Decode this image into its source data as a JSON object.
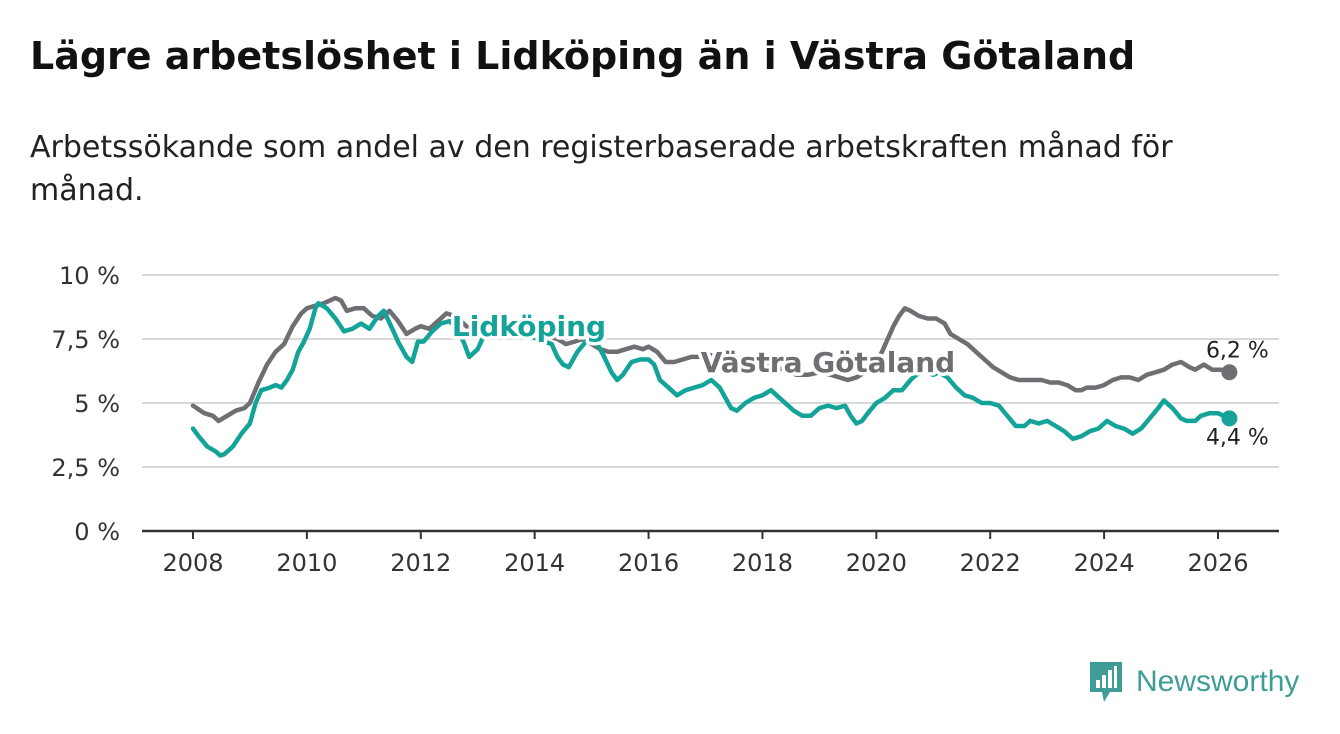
{
  "title": "Lägre arbetslöshet i Lidköping än i Västra Götaland",
  "subtitle": "Arbetssökande som andel av den registerbaserade arbetskraften månad för månad.",
  "brand": {
    "name": "Newsworthy",
    "icon": "newsworthy-logo-icon"
  },
  "colors": {
    "vg": "#6f6e73",
    "lid": "#14a398",
    "grid": "#d9d9d9",
    "axis": "#333333",
    "brand": "#3e9d97"
  },
  "chart_data": {
    "type": "line",
    "title": "Lägre arbetslöshet i Lidköping än i Västra Götaland",
    "xlabel": "",
    "ylabel": "",
    "xlim": [
      2007.2,
      2027.0
    ],
    "ylim": [
      0,
      10
    ],
    "grid": true,
    "x_ticks": [
      2008,
      2010,
      2012,
      2014,
      2016,
      2018,
      2020,
      2022,
      2024,
      2026
    ],
    "x_tick_labels": [
      "2008",
      "2010",
      "2012",
      "2014",
      "2016",
      "2018",
      "2020",
      "2022",
      "2024",
      "2026"
    ],
    "y_ticks": [
      0,
      2.5,
      5,
      7.5,
      10
    ],
    "y_tick_labels": [
      "0 %",
      "2,5 %",
      "5 %",
      "7,5 %",
      "10 %"
    ],
    "series": [
      {
        "name": "Västra Götaland",
        "color": "#6f6e73",
        "end_label": "6,2 %",
        "points": [
          [
            2008.0,
            4.9
          ],
          [
            2008.2,
            4.6
          ],
          [
            2008.35,
            4.5
          ],
          [
            2008.45,
            4.3
          ],
          [
            2008.6,
            4.5
          ],
          [
            2008.75,
            4.7
          ],
          [
            2008.9,
            4.8
          ],
          [
            2009.0,
            5.0
          ],
          [
            2009.15,
            5.8
          ],
          [
            2009.3,
            6.5
          ],
          [
            2009.45,
            7.0
          ],
          [
            2009.6,
            7.3
          ],
          [
            2009.75,
            8.0
          ],
          [
            2009.9,
            8.5
          ],
          [
            2010.0,
            8.7
          ],
          [
            2010.15,
            8.8
          ],
          [
            2010.3,
            8.9
          ],
          [
            2010.4,
            9.0
          ],
          [
            2010.5,
            9.1
          ],
          [
            2010.6,
            9.0
          ],
          [
            2010.7,
            8.6
          ],
          [
            2010.85,
            8.7
          ],
          [
            2011.0,
            8.7
          ],
          [
            2011.15,
            8.4
          ],
          [
            2011.3,
            8.3
          ],
          [
            2011.45,
            8.6
          ],
          [
            2011.6,
            8.2
          ],
          [
            2011.75,
            7.7
          ],
          [
            2011.9,
            7.9
          ],
          [
            2012.0,
            8.0
          ],
          [
            2012.15,
            7.9
          ],
          [
            2012.3,
            8.2
          ],
          [
            2012.45,
            8.5
          ],
          [
            2012.6,
            8.4
          ],
          [
            2012.75,
            8.1
          ],
          [
            2012.9,
            7.8
          ],
          [
            2013.05,
            7.9
          ],
          [
            2013.2,
            8.1
          ],
          [
            2013.3,
            8.2
          ],
          [
            2014.4,
            7.5
          ],
          [
            2014.55,
            7.3
          ],
          [
            2014.7,
            7.4
          ],
          [
            2014.85,
            7.5
          ],
          [
            2015.0,
            7.3
          ],
          [
            2015.15,
            7.1
          ],
          [
            2015.3,
            7.0
          ],
          [
            2015.45,
            7.0
          ],
          [
            2015.6,
            7.1
          ],
          [
            2015.75,
            7.2
          ],
          [
            2015.9,
            7.1
          ],
          [
            2016.0,
            7.2
          ],
          [
            2016.15,
            7.0
          ],
          [
            2016.3,
            6.6
          ],
          [
            2016.45,
            6.6
          ],
          [
            2016.6,
            6.7
          ],
          [
            2016.75,
            6.8
          ],
          [
            2016.9,
            6.8
          ],
          [
            2017.05,
            6.9
          ],
          [
            2017.2,
            6.8
          ],
          [
            2017.35,
            6.6
          ],
          [
            2017.5,
            6.4
          ],
          [
            2017.65,
            6.3
          ],
          [
            2017.8,
            6.4
          ],
          [
            2017.95,
            6.5
          ],
          [
            2018.05,
            6.5
          ],
          [
            2018.2,
            6.4
          ],
          [
            2018.4,
            6.3
          ],
          [
            2018.6,
            6.1
          ],
          [
            2018.8,
            6.1
          ],
          [
            2019.0,
            6.2
          ],
          [
            2019.2,
            6.1
          ],
          [
            2019.35,
            6.0
          ],
          [
            2019.5,
            5.9
          ],
          [
            2019.65,
            6.0
          ],
          [
            2019.8,
            6.2
          ],
          [
            2020.0,
            6.6
          ],
          [
            2020.1,
            7.0
          ],
          [
            2020.2,
            7.5
          ],
          [
            2020.3,
            8.0
          ],
          [
            2020.4,
            8.4
          ],
          [
            2020.5,
            8.7
          ],
          [
            2020.6,
            8.6
          ],
          [
            2020.75,
            8.4
          ],
          [
            2020.9,
            8.3
          ],
          [
            2021.05,
            8.3
          ],
          [
            2021.2,
            8.1
          ],
          [
            2021.3,
            7.7
          ],
          [
            2021.45,
            7.5
          ],
          [
            2021.6,
            7.3
          ],
          [
            2021.75,
            7.0
          ],
          [
            2021.9,
            6.7
          ],
          [
            2022.05,
            6.4
          ],
          [
            2022.2,
            6.2
          ],
          [
            2022.35,
            6.0
          ],
          [
            2022.5,
            5.9
          ],
          [
            2022.7,
            5.9
          ],
          [
            2022.9,
            5.9
          ],
          [
            2023.05,
            5.8
          ],
          [
            2023.2,
            5.8
          ],
          [
            2023.35,
            5.7
          ],
          [
            2023.5,
            5.5
          ],
          [
            2023.6,
            5.5
          ],
          [
            2023.7,
            5.6
          ],
          [
            2023.85,
            5.6
          ],
          [
            2024.0,
            5.7
          ],
          [
            2024.15,
            5.9
          ],
          [
            2024.3,
            6.0
          ],
          [
            2024.45,
            6.0
          ],
          [
            2024.6,
            5.9
          ],
          [
            2024.75,
            6.1
          ],
          [
            2024.9,
            6.2
          ],
          [
            2025.05,
            6.3
          ],
          [
            2025.2,
            6.5
          ],
          [
            2025.35,
            6.6
          ],
          [
            2025.5,
            6.4
          ],
          [
            2025.6,
            6.3
          ],
          [
            2025.75,
            6.5
          ],
          [
            2025.9,
            6.3
          ],
          [
            2026.05,
            6.3
          ],
          [
            2026.2,
            6.2
          ]
        ]
      },
      {
        "name": "Lidköping",
        "color": "#14a398",
        "end_label": "4,4 %",
        "points": [
          [
            2008.0,
            4.0
          ],
          [
            2008.1,
            3.7
          ],
          [
            2008.25,
            3.3
          ],
          [
            2008.4,
            3.1
          ],
          [
            2008.48,
            2.95
          ],
          [
            2008.55,
            3.0
          ],
          [
            2008.7,
            3.3
          ],
          [
            2008.85,
            3.8
          ],
          [
            2009.0,
            4.2
          ],
          [
            2009.1,
            5.0
          ],
          [
            2009.2,
            5.5
          ],
          [
            2009.35,
            5.6
          ],
          [
            2009.45,
            5.7
          ],
          [
            2009.55,
            5.6
          ],
          [
            2009.65,
            5.9
          ],
          [
            2009.75,
            6.3
          ],
          [
            2009.85,
            7.0
          ],
          [
            2009.95,
            7.4
          ],
          [
            2010.05,
            7.9
          ],
          [
            2010.15,
            8.7
          ],
          [
            2010.2,
            8.9
          ],
          [
            2010.35,
            8.7
          ],
          [
            2010.5,
            8.3
          ],
          [
            2010.65,
            7.8
          ],
          [
            2010.8,
            7.9
          ],
          [
            2010.95,
            8.1
          ],
          [
            2011.1,
            7.9
          ],
          [
            2011.25,
            8.4
          ],
          [
            2011.35,
            8.6
          ],
          [
            2011.5,
            7.9
          ],
          [
            2011.6,
            7.4
          ],
          [
            2011.75,
            6.8
          ],
          [
            2011.85,
            6.6
          ],
          [
            2011.95,
            7.4
          ],
          [
            2012.05,
            7.4
          ],
          [
            2012.2,
            7.8
          ],
          [
            2012.35,
            8.1
          ],
          [
            2012.5,
            8.2
          ],
          [
            2012.6,
            8.0
          ],
          [
            2012.75,
            7.4
          ],
          [
            2012.85,
            6.8
          ],
          [
            2013.0,
            7.1
          ],
          [
            2013.1,
            7.6
          ],
          [
            2013.2,
            8.0
          ],
          [
            2013.3,
            8.1
          ],
          [
            2014.3,
            7.3
          ],
          [
            2014.4,
            6.8
          ],
          [
            2014.5,
            6.5
          ],
          [
            2014.6,
            6.4
          ],
          [
            2014.75,
            7.0
          ],
          [
            2014.9,
            7.4
          ],
          [
            2015.0,
            7.6
          ],
          [
            2015.1,
            7.3
          ],
          [
            2015.2,
            6.9
          ],
          [
            2015.35,
            6.2
          ],
          [
            2015.45,
            5.9
          ],
          [
            2015.55,
            6.1
          ],
          [
            2015.7,
            6.6
          ],
          [
            2015.85,
            6.7
          ],
          [
            2016.0,
            6.7
          ],
          [
            2016.1,
            6.5
          ],
          [
            2016.2,
            5.9
          ],
          [
            2016.35,
            5.6
          ],
          [
            2016.5,
            5.3
          ],
          [
            2016.65,
            5.5
          ],
          [
            2016.8,
            5.6
          ],
          [
            2016.95,
            5.7
          ],
          [
            2017.1,
            5.9
          ],
          [
            2017.25,
            5.6
          ],
          [
            2017.35,
            5.2
          ],
          [
            2017.45,
            4.8
          ],
          [
            2017.55,
            4.7
          ],
          [
            2017.7,
            5.0
          ],
          [
            2017.85,
            5.2
          ],
          [
            2018.0,
            5.3
          ],
          [
            2018.15,
            5.5
          ],
          [
            2018.3,
            5.2
          ],
          [
            2018.45,
            4.9
          ],
          [
            2018.55,
            4.7
          ],
          [
            2018.7,
            4.5
          ],
          [
            2018.85,
            4.5
          ],
          [
            2019.0,
            4.8
          ],
          [
            2019.15,
            4.9
          ],
          [
            2019.3,
            4.8
          ],
          [
            2019.45,
            4.9
          ],
          [
            2019.55,
            4.5
          ],
          [
            2019.65,
            4.2
          ],
          [
            2019.75,
            4.3
          ],
          [
            2019.85,
            4.6
          ],
          [
            2020.0,
            5.0
          ],
          [
            2020.15,
            5.2
          ],
          [
            2020.3,
            5.5
          ],
          [
            2020.45,
            5.5
          ],
          [
            2020.6,
            5.9
          ],
          [
            2020.7,
            6.1
          ],
          [
            2020.8,
            6.2
          ],
          [
            2020.9,
            6.2
          ],
          [
            2021.0,
            6.1
          ],
          [
            2021.1,
            6.2
          ],
          [
            2021.25,
            6.0
          ],
          [
            2021.4,
            5.6
          ],
          [
            2021.55,
            5.3
          ],
          [
            2021.7,
            5.2
          ],
          [
            2021.85,
            5.0
          ],
          [
            2022.0,
            5.0
          ],
          [
            2022.15,
            4.9
          ],
          [
            2022.3,
            4.5
          ],
          [
            2022.45,
            4.1
          ],
          [
            2022.6,
            4.1
          ],
          [
            2022.7,
            4.3
          ],
          [
            2022.85,
            4.2
          ],
          [
            2023.0,
            4.3
          ],
          [
            2023.15,
            4.1
          ],
          [
            2023.3,
            3.9
          ],
          [
            2023.45,
            3.6
          ],
          [
            2023.6,
            3.7
          ],
          [
            2023.75,
            3.9
          ],
          [
            2023.9,
            4.0
          ],
          [
            2024.05,
            4.3
          ],
          [
            2024.2,
            4.1
          ],
          [
            2024.35,
            4.0
          ],
          [
            2024.5,
            3.8
          ],
          [
            2024.65,
            4.0
          ],
          [
            2024.8,
            4.4
          ],
          [
            2024.95,
            4.8
          ],
          [
            2025.05,
            5.1
          ],
          [
            2025.2,
            4.8
          ],
          [
            2025.35,
            4.4
          ],
          [
            2025.45,
            4.3
          ],
          [
            2025.6,
            4.3
          ],
          [
            2025.7,
            4.5
          ],
          [
            2025.85,
            4.6
          ],
          [
            2026.0,
            4.6
          ],
          [
            2026.2,
            4.4
          ]
        ]
      }
    ],
    "annotations": [
      {
        "text": "Lidköping",
        "series": "Lidköping",
        "x": 2013.9,
        "y": 8.0
      },
      {
        "text": "Västra Götaland",
        "series": "Västra Götaland",
        "x": 2019.15,
        "y": 6.6
      }
    ]
  }
}
